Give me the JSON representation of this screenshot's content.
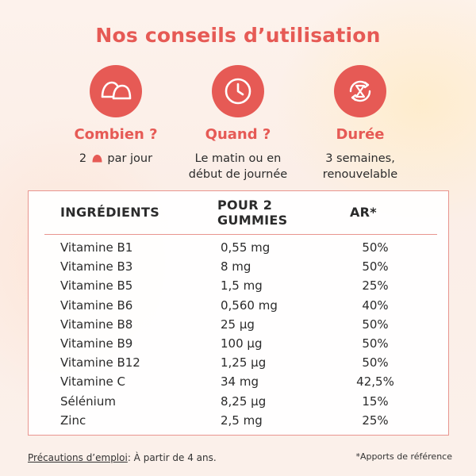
{
  "header": {
    "title_prefix": "Nos ",
    "title_bold": "conseils d’utilisation"
  },
  "colors": {
    "accent": "#e65a55",
    "table_border": "#e8958f"
  },
  "advice": [
    {
      "icon": "gummy-icon",
      "heading": "Combien ?",
      "text_before": "2",
      "text_after": "par jour"
    },
    {
      "icon": "clock-icon",
      "heading": "Quand ?",
      "text_line1": "Le matin ou en",
      "text_line2": "début de journée"
    },
    {
      "icon": "hourglass-refresh-icon",
      "heading": "Durée",
      "text_line1": "3 semaines,",
      "text_line2": "renouvelable"
    }
  ],
  "table": {
    "headers": {
      "ingredients": "INGRÉDIENTS",
      "per_line1": "POUR 2",
      "per_line2": "GUMMIES",
      "ar": "AR*"
    },
    "rows": [
      {
        "name": "Vitamine B1",
        "qty": "0,55 mg",
        "ar": "50%"
      },
      {
        "name": "Vitamine B3",
        "qty": "8 mg",
        "ar": "50%"
      },
      {
        "name": "Vitamine B5",
        "qty": "1,5 mg",
        "ar": "25%"
      },
      {
        "name": "Vitamine B6",
        "qty": "0,560 mg",
        "ar": "40%"
      },
      {
        "name": "Vitamine B8",
        "qty": "25 µg",
        "ar": "50%"
      },
      {
        "name": "Vitamine B9",
        "qty": "100 µg",
        "ar": "50%"
      },
      {
        "name": "Vitamine B12",
        "qty": "1,25 µg",
        "ar": "50%"
      },
      {
        "name": "Vitamine C",
        "qty": "34 mg",
        "ar": "42,5%"
      },
      {
        "name": "Sélénium",
        "qty": "8,25 µg",
        "ar": "15%"
      },
      {
        "name": "Zinc",
        "qty": "2,5 mg",
        "ar": "25%"
      }
    ]
  },
  "footer": {
    "precautions_label": "Précautions d’emploi",
    "precautions_text": ": À partir de 4 ans.",
    "reference_note": "*Apports de référence"
  }
}
